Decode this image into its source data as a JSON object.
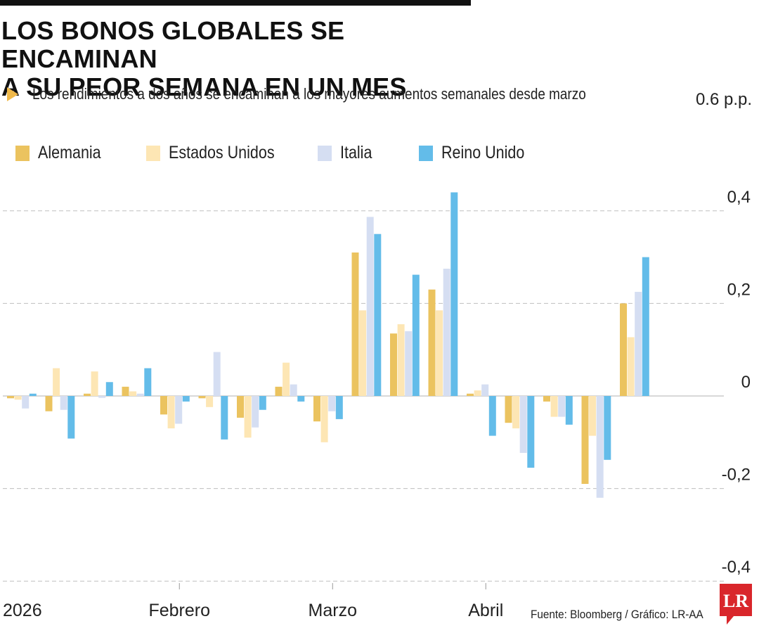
{
  "header": {
    "title_line1": "LOS BONOS GLOBALES SE ENCAMINAN",
    "title_line2": "A SU PEOR SEMANA EN UN MES",
    "subtitle": "Los rendimientos a dos años se encaminan a los mayores aumentos semanales desde marzo"
  },
  "footer": {
    "source": "Fuente: Bloomberg / Gráfico: LR-AA",
    "logo_text": "LR"
  },
  "colors": {
    "Alemania": "#ebc35f",
    "Estados Unidos": "#fde6b4",
    "Italia": "#d5def2",
    "Reino Unido": "#63bce9",
    "grid": "#bfbfbf",
    "subtitle_arrow": "#f0b94a",
    "logo": "#d9262b"
  },
  "chart_data": {
    "type": "bar",
    "title": "LOS BONOS GLOBALES SE ENCAMINAN A SU PEOR SEMANA EN UN MES",
    "subtitle": "Los rendimientos a dos años se encaminan a los mayores aumentos semanales desde marzo",
    "unit_label": "0.6 p.p.",
    "ylim": [
      -0.4,
      0.6
    ],
    "yticks": [
      0.4,
      0.2,
      0,
      -0.2,
      -0.4
    ],
    "ytick_labels": [
      "0,4",
      "0,2",
      "0",
      "-0,2",
      "-0,4"
    ],
    "y_axis_side": "right",
    "grid": true,
    "legend_placement": "top-left",
    "x_labels": [
      "2026",
      "Febrero",
      "Marzo",
      "Abril"
    ],
    "x_label_week_index": [
      0,
      4.5,
      8.5,
      12.5
    ],
    "weeks": 17,
    "series": [
      {
        "name": "Alemania",
        "values": [
          -0.005,
          -0.033,
          0.005,
          0.02,
          -0.04,
          -0.005,
          -0.047,
          0.02,
          -0.055,
          0.31,
          0.135,
          0.23,
          0.005,
          -0.058,
          -0.012,
          -0.19,
          0.2
        ]
      },
      {
        "name": "Estados Unidos",
        "values": [
          -0.008,
          0.06,
          0.053,
          0.01,
          -0.07,
          -0.024,
          -0.09,
          0.072,
          -0.1,
          0.185,
          0.155,
          0.185,
          0.012,
          -0.07,
          -0.045,
          -0.086,
          0.127
        ]
      },
      {
        "name": "Italia",
        "values": [
          -0.027,
          -0.03,
          -0.004,
          0.005,
          -0.06,
          0.095,
          -0.068,
          0.025,
          -0.033,
          0.387,
          0.14,
          0.275,
          0.025,
          -0.123,
          -0.045,
          -0.22,
          0.225
        ]
      },
      {
        "name": "Reino Unido",
        "values": [
          0.005,
          -0.092,
          0.03,
          0.06,
          -0.012,
          -0.094,
          -0.03,
          -0.012,
          -0.05,
          0.35,
          0.262,
          0.44,
          -0.086,
          -0.155,
          -0.062,
          -0.138,
          0.3
        ]
      }
    ]
  }
}
